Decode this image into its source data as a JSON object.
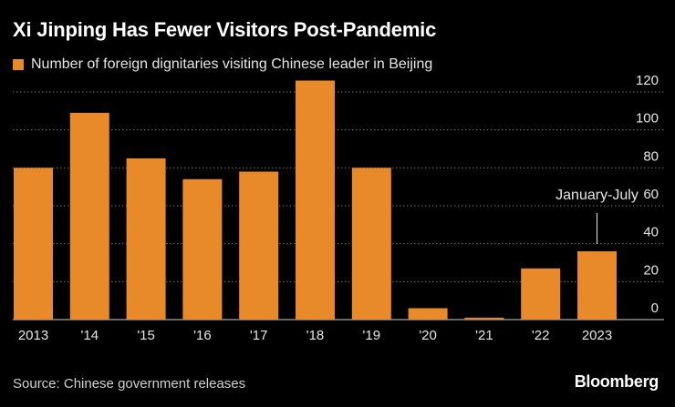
{
  "chart_data": {
    "type": "bar",
    "title": "Xi Jinping Has Fewer Visitors Post-Pandemic",
    "series": [
      {
        "name": "Number of foreign dignitaries visiting Chinese leader in Beijing",
        "color": "#e8892a",
        "values": [
          80,
          109,
          85,
          74,
          78,
          126,
          80,
          6,
          1,
          27,
          36
        ]
      }
    ],
    "categories": [
      "2013",
      "'14",
      "'15",
      "'16",
      "'17",
      "'18",
      "'19",
      "'20",
      "'21",
      "'22",
      "2023"
    ],
    "ylim": [
      0,
      120
    ],
    "yticks": [
      0,
      20,
      40,
      60,
      80,
      100,
      120
    ],
    "xlabel": "",
    "ylabel": "",
    "grid": true,
    "annotation": {
      "text": "January-July",
      "category": "2023"
    }
  },
  "footer": {
    "source": "Source: Chinese government releases",
    "brand": "Bloomberg"
  }
}
